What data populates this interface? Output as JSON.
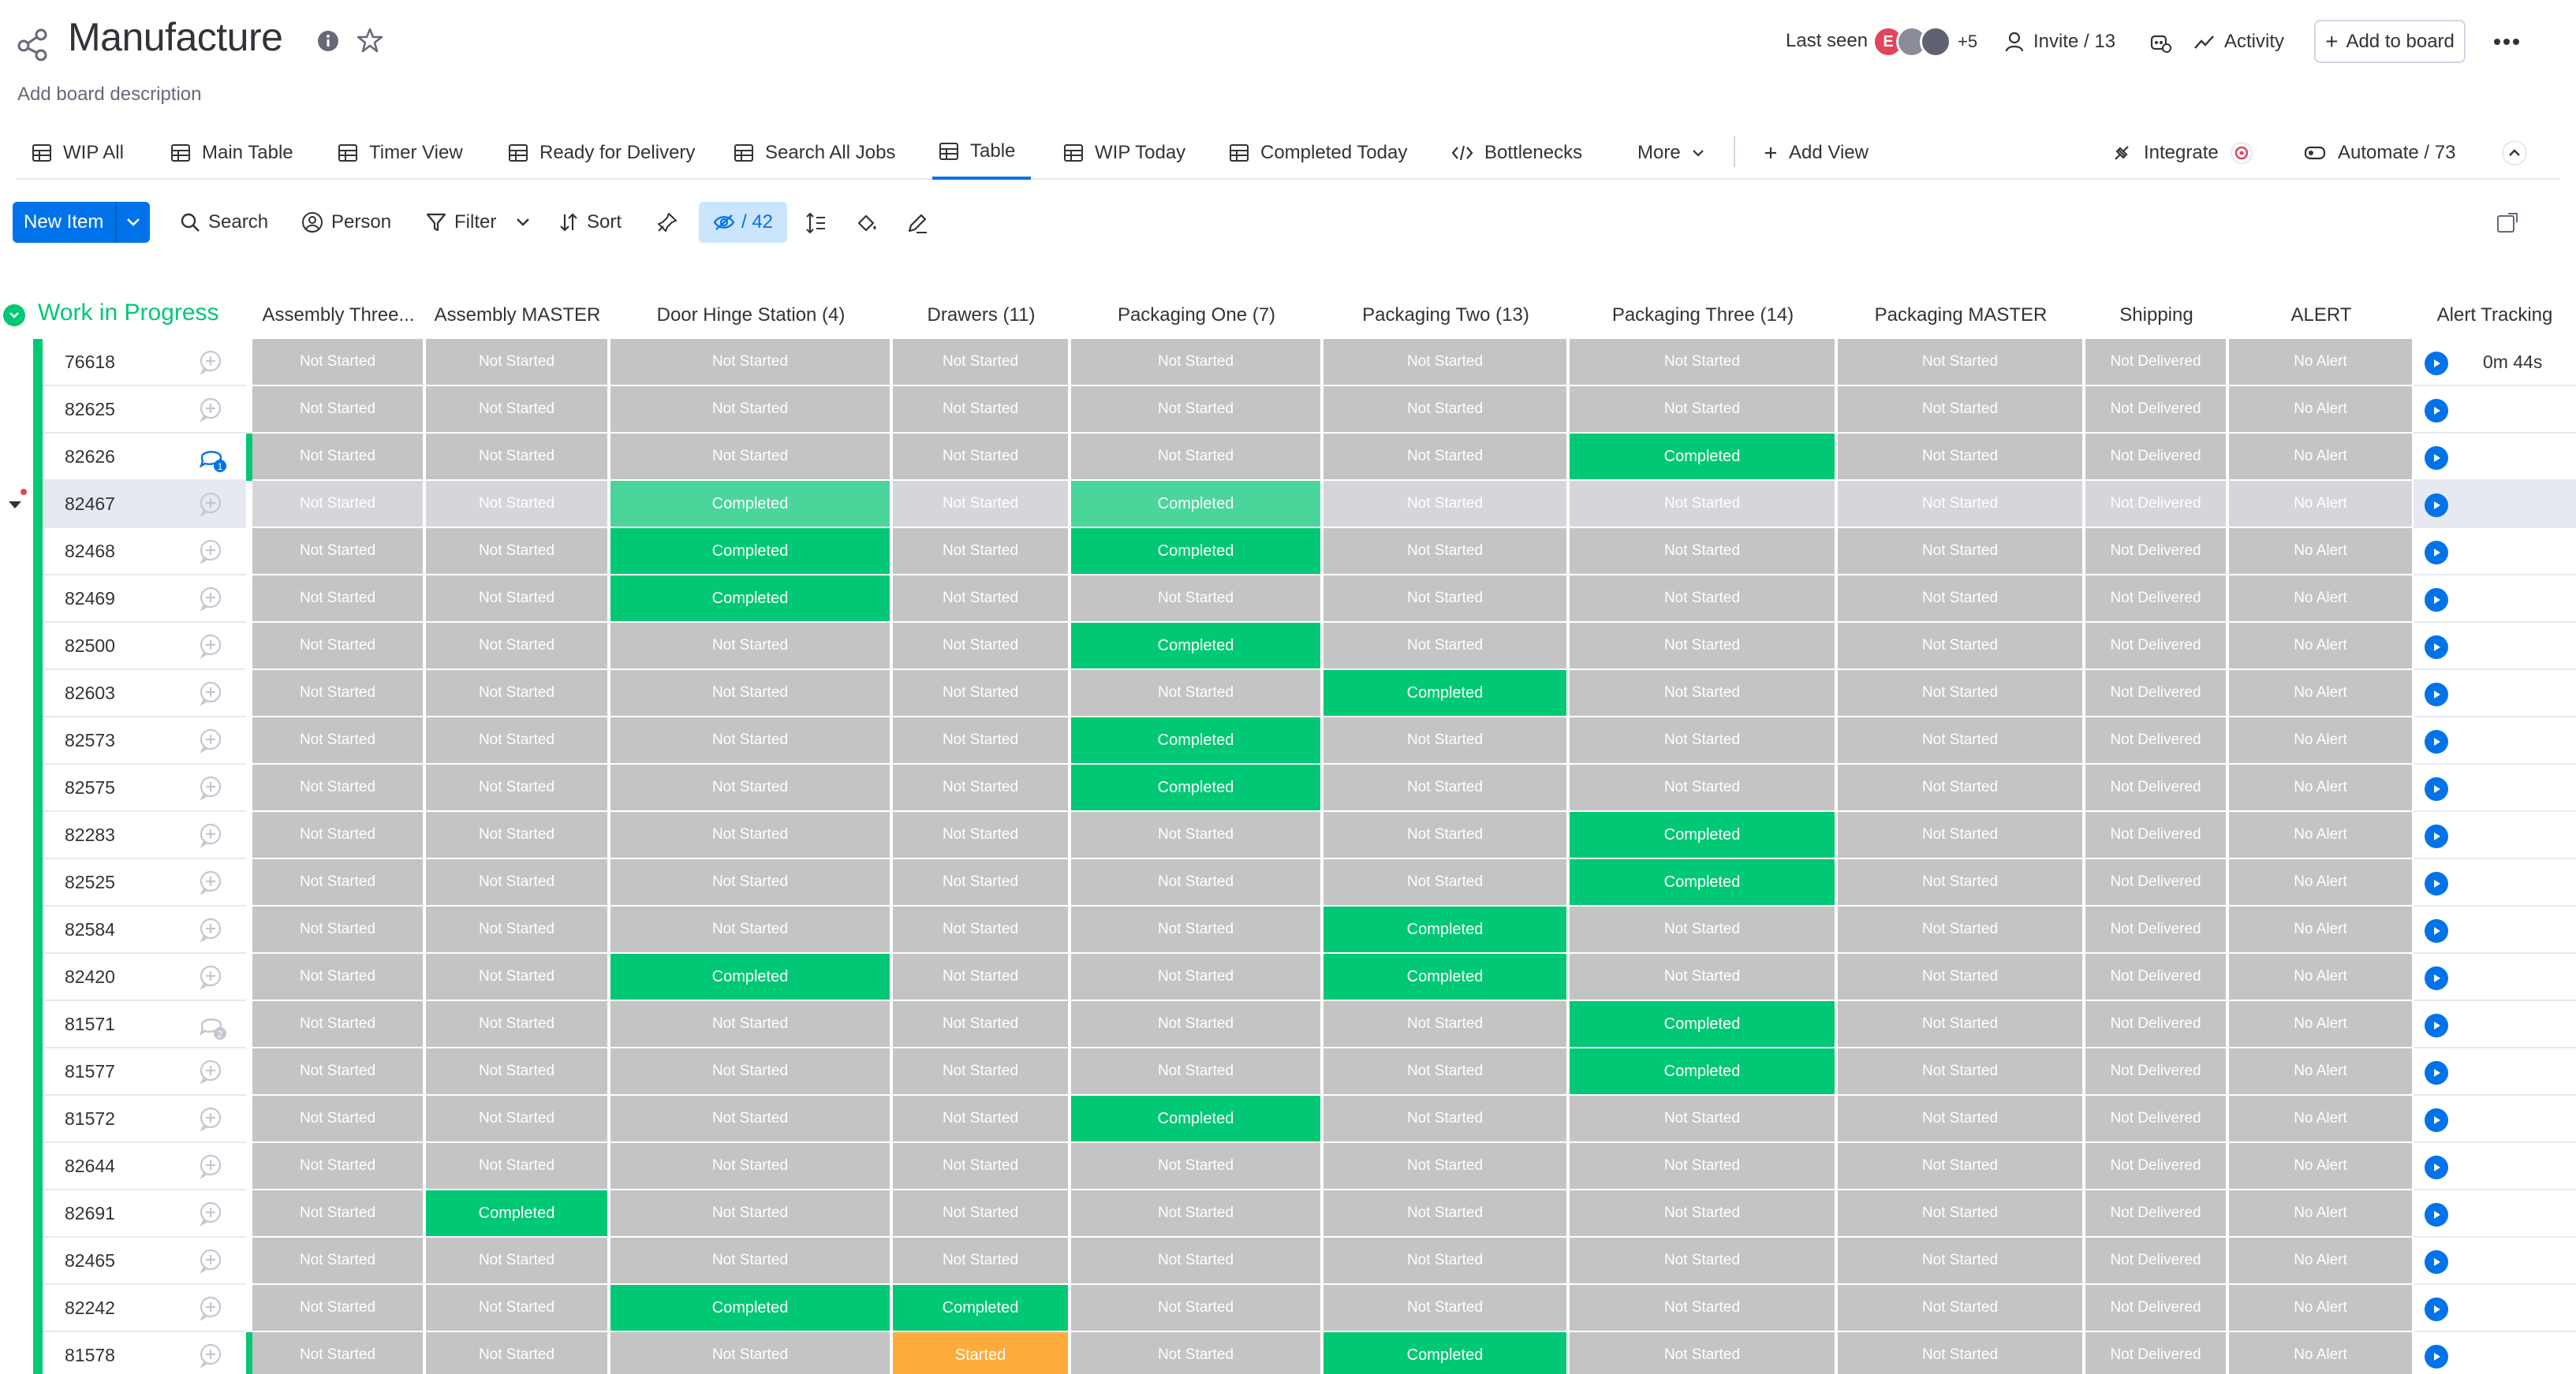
{
  "header": {
    "title": "Manufacture",
    "description": "Add board description",
    "last_seen_label": "Last seen",
    "avatar_initial": "E",
    "avatar_more": "+5",
    "invite_label": "Invite / 13",
    "activity_label": "Activity",
    "add_to_board_label": "Add to board"
  },
  "tabs": [
    {
      "label": "WIP All",
      "icon": "table-icon"
    },
    {
      "label": "Main Table",
      "icon": "table-icon"
    },
    {
      "label": "Timer View",
      "icon": "table-icon"
    },
    {
      "label": "Ready for Delivery",
      "icon": "table-icon"
    },
    {
      "label": "Search All Jobs",
      "icon": "table-icon"
    },
    {
      "label": "Table",
      "icon": "table-icon",
      "active": true
    },
    {
      "label": "WIP Today",
      "icon": "table-icon"
    },
    {
      "label": "Completed Today",
      "icon": "table-icon"
    },
    {
      "label": "Bottlenecks",
      "icon": "code-icon"
    },
    {
      "label": "More",
      "icon": "chevron-down-icon"
    },
    {
      "label": "Add View",
      "icon": "plus-icon"
    }
  ],
  "integrations": {
    "integrate_label": "Integrate",
    "automate_label": "Automate / 73"
  },
  "toolbar": {
    "new_item_label": "New Item",
    "search_label": "Search",
    "person_label": "Person",
    "filter_label": "Filter",
    "sort_label": "Sort",
    "hidden_count": "/ 42"
  },
  "group": {
    "title": "Work in Progress",
    "color": "#00c875"
  },
  "columns": [
    "Assembly Three...",
    "Assembly MASTER",
    "Door Hinge Station (4)",
    "Drawers (11)",
    "Packaging One (7)",
    "Packaging Two (13)",
    "Packaging Three (14)",
    "Packaging MASTER",
    "Shipping",
    "ALERT",
    "Alert Tracking"
  ],
  "status_labels": {
    "not_started": "Not Started",
    "completed": "Completed",
    "started": "Started",
    "not_delivered": "Not Delivered",
    "no_alert": "No Alert"
  },
  "colors": {
    "not_started": "#c4c4c4",
    "completed": "#00c875",
    "started": "#fdab3d",
    "accent": "#0073ea"
  },
  "timer_first_row": "0m 44s",
  "rows": [
    {
      "id": "76618",
      "s": [
        "N",
        "N",
        "N",
        "N",
        "N",
        "N",
        "N",
        "N"
      ]
    },
    {
      "id": "82625",
      "s": [
        "N",
        "N",
        "N",
        "N",
        "N",
        "N",
        "N",
        "N"
      ]
    },
    {
      "id": "82626",
      "s": [
        "N",
        "N",
        "N",
        "N",
        "N",
        "N",
        "C",
        "N"
      ],
      "updates": "1"
    },
    {
      "id": "82467",
      "s": [
        "N",
        "N",
        "C",
        "N",
        "C",
        "N",
        "N",
        "N"
      ],
      "hover": true
    },
    {
      "id": "82468",
      "s": [
        "N",
        "N",
        "C",
        "N",
        "C",
        "N",
        "N",
        "N"
      ]
    },
    {
      "id": "82469",
      "s": [
        "N",
        "N",
        "C",
        "N",
        "N",
        "N",
        "N",
        "N"
      ]
    },
    {
      "id": "82500",
      "s": [
        "N",
        "N",
        "N",
        "N",
        "C",
        "N",
        "N",
        "N"
      ]
    },
    {
      "id": "82603",
      "s": [
        "N",
        "N",
        "N",
        "N",
        "N",
        "C",
        "N",
        "N"
      ]
    },
    {
      "id": "82573",
      "s": [
        "N",
        "N",
        "N",
        "N",
        "C",
        "N",
        "N",
        "N"
      ]
    },
    {
      "id": "82575",
      "s": [
        "N",
        "N",
        "N",
        "N",
        "C",
        "N",
        "N",
        "N"
      ]
    },
    {
      "id": "82283",
      "s": [
        "N",
        "N",
        "N",
        "N",
        "N",
        "N",
        "C",
        "N"
      ]
    },
    {
      "id": "82525",
      "s": [
        "N",
        "N",
        "N",
        "N",
        "N",
        "N",
        "C",
        "N"
      ]
    },
    {
      "id": "82584",
      "s": [
        "N",
        "N",
        "N",
        "N",
        "N",
        "C",
        "N",
        "N"
      ]
    },
    {
      "id": "82420",
      "s": [
        "N",
        "N",
        "C",
        "N",
        "N",
        "C",
        "N",
        "N"
      ]
    },
    {
      "id": "81571",
      "s": [
        "N",
        "N",
        "N",
        "N",
        "N",
        "N",
        "C",
        "N"
      ],
      "updates": "2"
    },
    {
      "id": "81577",
      "s": [
        "N",
        "N",
        "N",
        "N",
        "N",
        "N",
        "C",
        "N"
      ]
    },
    {
      "id": "81572",
      "s": [
        "N",
        "N",
        "N",
        "N",
        "C",
        "N",
        "N",
        "N"
      ]
    },
    {
      "id": "82644",
      "s": [
        "N",
        "N",
        "N",
        "N",
        "N",
        "N",
        "N",
        "N"
      ]
    },
    {
      "id": "82691",
      "s": [
        "N",
        "C",
        "N",
        "N",
        "N",
        "N",
        "N",
        "N"
      ]
    },
    {
      "id": "82465",
      "s": [
        "N",
        "N",
        "N",
        "N",
        "N",
        "N",
        "N",
        "N"
      ]
    },
    {
      "id": "82242",
      "s": [
        "N",
        "N",
        "C",
        "C",
        "N",
        "N",
        "N",
        "N"
      ]
    },
    {
      "id": "81578",
      "s": [
        "N",
        "N",
        "N",
        "S",
        "N",
        "C",
        "N",
        "N"
      ]
    }
  ]
}
